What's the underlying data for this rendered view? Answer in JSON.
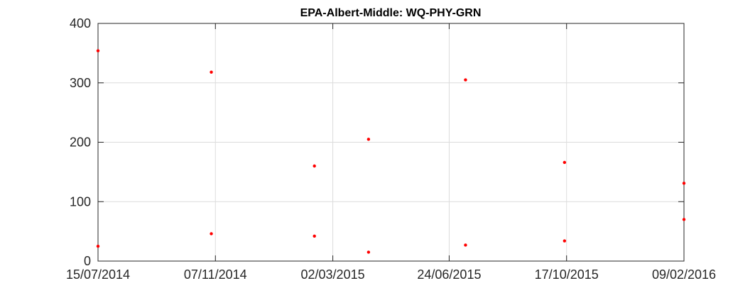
{
  "chart_data": {
    "type": "scatter",
    "title": "EPA-Albert-Middle: WQ-PHY-GRN",
    "xlabel": "",
    "ylabel": "",
    "x_axis_type": "date",
    "xlim": [
      "2014-07-15",
      "2016-02-09"
    ],
    "ylim": [
      0,
      400
    ],
    "x_ticks": [
      "2014-07-15",
      "2014-11-07",
      "2015-03-02",
      "2015-06-24",
      "2015-10-17",
      "2016-02-09"
    ],
    "x_tick_labels": [
      "15/07/2014",
      "07/11/2014",
      "02/03/2015",
      "24/06/2015",
      "17/10/2015",
      "09/02/2016"
    ],
    "y_ticks": [
      0,
      100,
      200,
      300,
      400
    ],
    "y_tick_labels": [
      "0",
      "100",
      "200",
      "300",
      "400"
    ],
    "grid": true,
    "legend": "none",
    "series": [
      {
        "color": "#ff0000",
        "marker": "dot",
        "points": [
          {
            "x": "2014-07-15",
            "y": 354
          },
          {
            "x": "2014-07-15",
            "y": 25
          },
          {
            "x": "2014-11-03",
            "y": 318
          },
          {
            "x": "2014-11-03",
            "y": 46
          },
          {
            "x": "2015-02-12",
            "y": 160
          },
          {
            "x": "2015-02-12",
            "y": 42
          },
          {
            "x": "2015-04-06",
            "y": 205
          },
          {
            "x": "2015-04-06",
            "y": 15
          },
          {
            "x": "2015-07-10",
            "y": 305
          },
          {
            "x": "2015-07-10",
            "y": 27
          },
          {
            "x": "2015-10-15",
            "y": 166
          },
          {
            "x": "2015-10-15",
            "y": 34
          },
          {
            "x": "2016-02-09",
            "y": 131
          },
          {
            "x": "2016-02-09",
            "y": 70
          }
        ]
      }
    ]
  }
}
